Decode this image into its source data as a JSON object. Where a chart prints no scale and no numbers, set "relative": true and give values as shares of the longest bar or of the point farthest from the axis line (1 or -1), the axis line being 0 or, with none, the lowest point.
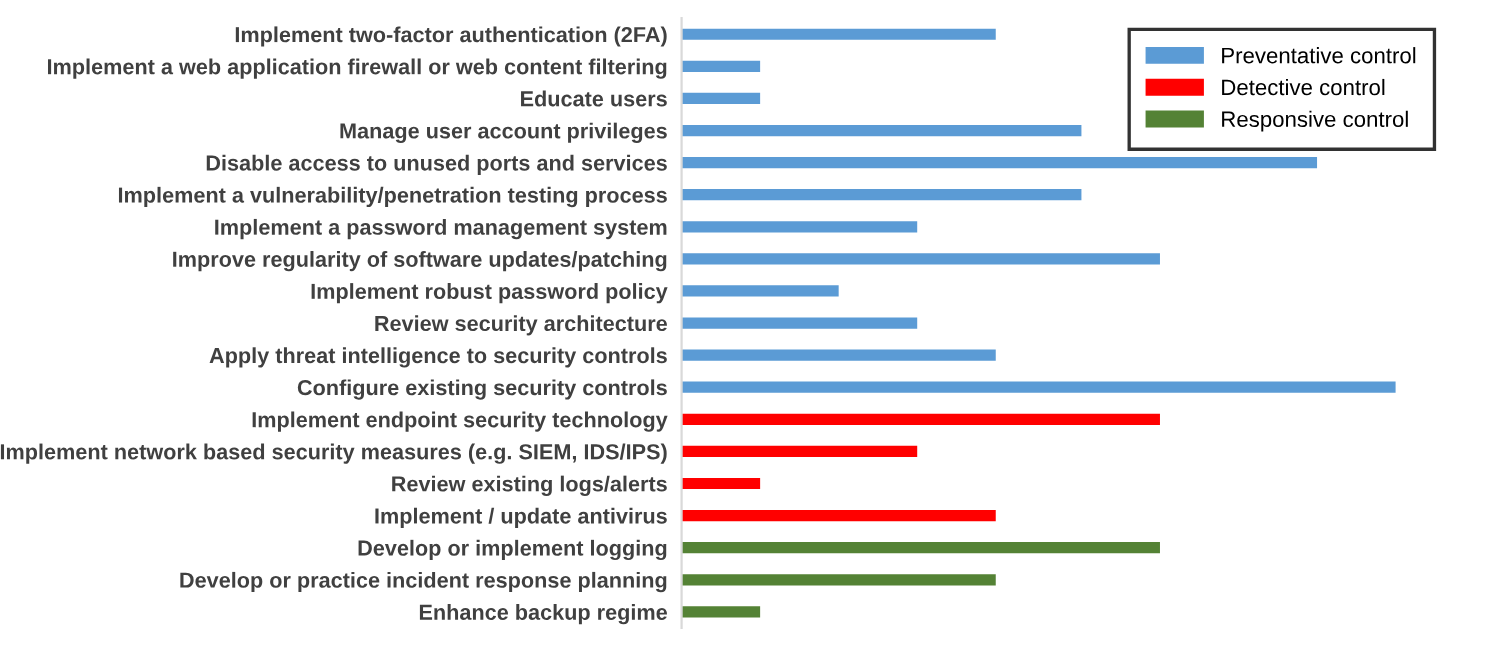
{
  "chart_data": {
    "type": "bar",
    "orientation": "horizontal",
    "relative": true,
    "legend": "top right",
    "categories": [
      "Implement two-factor authentication (2FA)",
      "Implement a web application firewall or web content filtering",
      "Educate users",
      "Manage user account privileges",
      "Disable access to unused ports and services",
      "Implement a vulnerability/penetration testing process",
      "Implement a password management system",
      "Improve regularity of software updates/patching",
      "Implement robust password policy",
      "Review security architecture",
      "Apply threat intelligence to security controls",
      "Configure existing security controls",
      "Implement endpoint security technology",
      "Implement network based security measures (e.g. SIEM, IDS/IPS)",
      "Review existing logs/alerts",
      "Implement / update antivirus",
      "Develop or implement logging",
      "Develop or practice incident response planning",
      "Enhance backup regime"
    ],
    "series": [
      {
        "name": "Preventative control",
        "color": "#5b9bd5",
        "values": [
          0.44,
          0.11,
          0.11,
          0.56,
          0.89,
          0.56,
          0.33,
          0.67,
          0.22,
          0.33,
          0.44,
          1,
          null,
          null,
          null,
          null,
          null,
          null,
          null
        ]
      },
      {
        "name": "Detective control",
        "color": "#ff0000",
        "values": [
          null,
          null,
          null,
          null,
          null,
          null,
          null,
          null,
          null,
          null,
          null,
          null,
          0.67,
          0.33,
          0.11,
          0.44,
          null,
          null,
          null
        ]
      },
      {
        "name": "Responsive control",
        "color": "#548235",
        "values": [
          null,
          null,
          null,
          null,
          null,
          null,
          null,
          null,
          null,
          null,
          null,
          null,
          null,
          null,
          null,
          null,
          0.67,
          0.44,
          0.11
        ]
      }
    ]
  }
}
